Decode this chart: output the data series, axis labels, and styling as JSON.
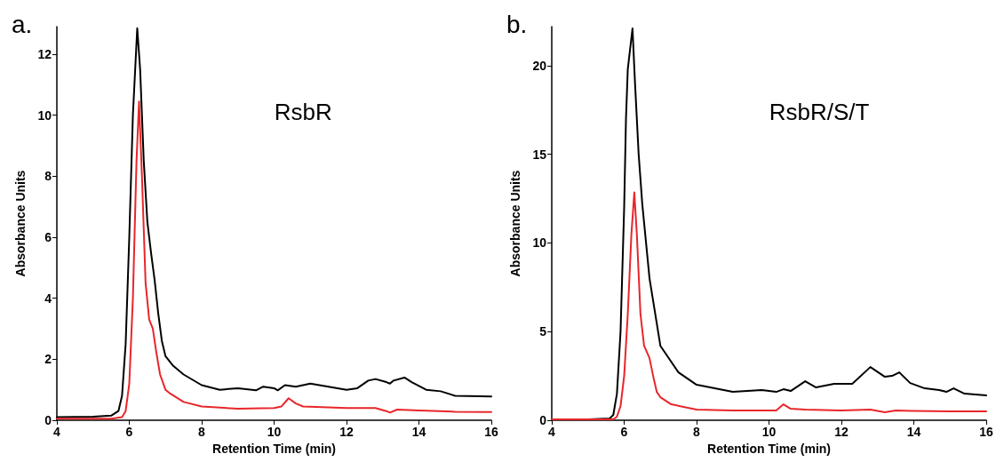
{
  "chart_data": [
    {
      "type": "line",
      "title": "a.",
      "xlabel": "Retention Time (min)",
      "ylabel": "Absorbance Units",
      "annotations": [
        "RsbR"
      ],
      "xlim": [
        4,
        16
      ],
      "xticks": [
        4,
        6,
        8,
        10,
        12,
        14,
        16
      ],
      "ylim": [
        0,
        12.9
      ],
      "yticks": [
        0,
        2,
        4,
        6,
        8,
        10,
        12
      ],
      "grid": false,
      "marker": "none",
      "line_style": "solid",
      "series": [
        {
          "color": "#000000",
          "x": [
            4,
            5,
            5.5,
            5.7,
            5.8,
            5.9,
            6.0,
            6.1,
            6.22,
            6.3,
            6.4,
            6.5,
            6.6,
            6.7,
            6.8,
            6.9,
            7.0,
            7.2,
            7.5,
            8,
            8.5,
            9,
            9.5,
            9.7,
            10,
            10.1,
            10.3,
            10.6,
            11,
            11.5,
            12,
            12.3,
            12.6,
            12.8,
            13.1,
            13.2,
            13.3,
            13.6,
            13.8,
            14.2,
            14.6,
            15,
            16
          ],
          "values": [
            0.1,
            0.12,
            0.15,
            0.3,
            0.8,
            2.5,
            6,
            10,
            12.85,
            11.5,
            8.5,
            6.5,
            5.5,
            4.6,
            3.5,
            2.6,
            2.1,
            1.8,
            1.5,
            1.15,
            1.0,
            1.05,
            0.98,
            1.1,
            1.05,
            0.98,
            1.15,
            1.1,
            1.2,
            1.1,
            1.0,
            1.05,
            1.3,
            1.35,
            1.25,
            1.2,
            1.3,
            1.4,
            1.25,
            1.0,
            0.95,
            0.8,
            0.78
          ]
        },
        {
          "color": "#e8262a",
          "x": [
            4,
            5.5,
            5.8,
            5.9,
            6.0,
            6.1,
            6.2,
            6.27,
            6.35,
            6.45,
            6.55,
            6.65,
            6.75,
            6.85,
            7.0,
            7.1,
            7.5,
            8,
            9,
            10,
            10.2,
            10.4,
            10.6,
            10.8,
            11.5,
            12,
            12.8,
            13.1,
            13.2,
            13.4,
            14,
            15,
            16
          ],
          "values": [
            0.05,
            0.05,
            0.1,
            0.3,
            1.2,
            4,
            8.5,
            10.45,
            8,
            4.5,
            3.3,
            3.0,
            2.2,
            1.5,
            1.0,
            0.9,
            0.6,
            0.45,
            0.38,
            0.4,
            0.45,
            0.72,
            0.55,
            0.45,
            0.42,
            0.4,
            0.4,
            0.3,
            0.25,
            0.35,
            0.32,
            0.28,
            0.27
          ]
        }
      ]
    },
    {
      "type": "line",
      "title": "b.",
      "xlabel": "Retention Time (min)",
      "ylabel": "Absorbance Units",
      "annotations": [
        "RsbR/S/T"
      ],
      "xlim": [
        4,
        16
      ],
      "xticks": [
        4,
        6,
        8,
        10,
        12,
        14,
        16
      ],
      "ylim": [
        0,
        22.2
      ],
      "yticks": [
        0,
        5,
        10,
        15,
        20
      ],
      "grid": false,
      "marker": "none",
      "line_style": "solid",
      "series": [
        {
          "color": "#000000",
          "x": [
            4,
            5,
            5.6,
            5.7,
            5.8,
            5.9,
            6.0,
            6.05,
            6.1,
            6.23,
            6.3,
            6.4,
            6.5,
            6.7,
            7.0,
            7.5,
            8,
            9,
            9.8,
            10.2,
            10.4,
            10.6,
            11.0,
            11.3,
            11.8,
            12.3,
            12.8,
            13.2,
            13.4,
            13.6,
            13.9,
            14.3,
            14.7,
            14.9,
            15.1,
            15.4,
            16
          ],
          "values": [
            0.05,
            0.05,
            0.1,
            0.3,
            1.5,
            5,
            12,
            17,
            19.8,
            22.1,
            19,
            15,
            12.2,
            8,
            4.2,
            2.7,
            2.0,
            1.6,
            1.7,
            1.6,
            1.75,
            1.65,
            2.2,
            1.85,
            2.05,
            2.05,
            3.0,
            2.45,
            2.5,
            2.7,
            2.1,
            1.8,
            1.7,
            1.6,
            1.8,
            1.5,
            1.4
          ]
        },
        {
          "color": "#e8262a",
          "x": [
            4,
            5.7,
            5.8,
            5.9,
            6.0,
            6.1,
            6.2,
            6.28,
            6.35,
            6.45,
            6.55,
            6.7,
            6.8,
            6.9,
            7.0,
            7.3,
            8,
            9,
            10.2,
            10.4,
            10.6,
            11,
            12,
            12.8,
            13.2,
            13.5,
            14,
            15,
            16
          ],
          "values": [
            0.05,
            0.05,
            0.2,
            0.8,
            2.5,
            6,
            10.5,
            12.85,
            10.5,
            6,
            4.2,
            3.5,
            2.5,
            1.6,
            1.3,
            0.9,
            0.6,
            0.55,
            0.55,
            0.9,
            0.65,
            0.6,
            0.55,
            0.6,
            0.45,
            0.55,
            0.52,
            0.5,
            0.5
          ]
        }
      ]
    }
  ]
}
